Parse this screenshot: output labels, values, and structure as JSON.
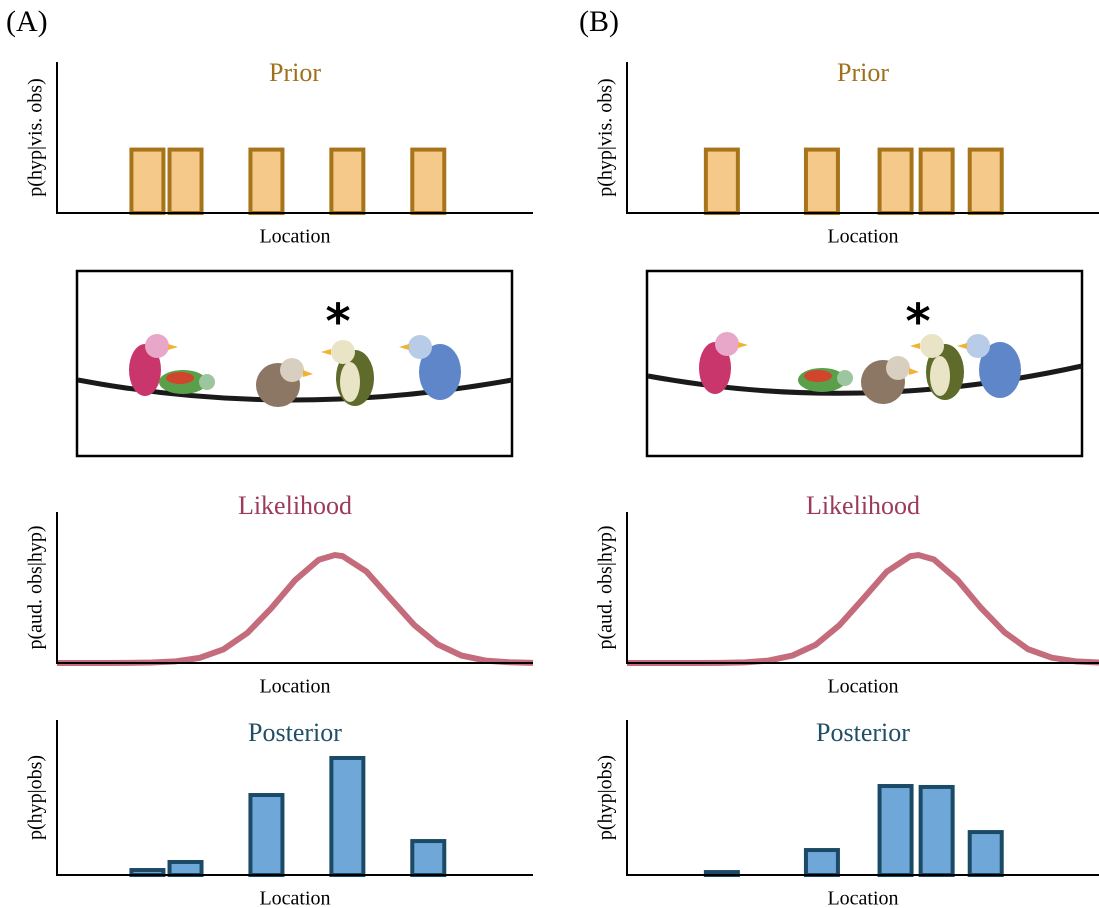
{
  "panel_labels": [
    "(A)",
    "(B)"
  ],
  "scenes": [
    {
      "marker": "*"
    },
    {
      "marker": "*"
    }
  ],
  "chart_data": [
    {
      "type": "bar",
      "title": "Prior",
      "title_color": "#a0701c",
      "ylabel": "p(hyp|vis. obs)",
      "xlabel": "Location",
      "x": [
        0.19,
        0.27,
        0.44,
        0.61,
        0.78
      ],
      "values": [
        0.42,
        0.42,
        0.42,
        0.42,
        0.42
      ],
      "color": "#f5c98a",
      "edgecolor": "#a87419",
      "xlim": [
        0,
        1
      ],
      "ylim": [
        0,
        1
      ]
    },
    {
      "type": "line",
      "title": "Likelihood",
      "title_color": "#9b3a5a",
      "ylabel": "p(aud. obs|hyp)",
      "xlabel": "Location",
      "x": [
        0,
        0.05,
        0.1,
        0.15,
        0.2,
        0.25,
        0.3,
        0.35,
        0.4,
        0.45,
        0.5,
        0.55,
        0.584,
        0.6,
        0.65,
        0.7,
        0.75,
        0.8,
        0.85,
        0.9,
        0.95,
        1
      ],
      "values": [
        0,
        0,
        0,
        0.001,
        0.003,
        0.011,
        0.034,
        0.091,
        0.199,
        0.362,
        0.548,
        0.684,
        0.715,
        0.708,
        0.606,
        0.429,
        0.253,
        0.123,
        0.049,
        0.016,
        0.005,
        0.001
      ],
      "color": "#c46b7c",
      "xlim": [
        0,
        1
      ],
      "ylim": [
        0,
        1
      ]
    },
    {
      "type": "bar",
      "title": "Posterior",
      "title_color": "#1f4e66",
      "ylabel": "p(hyp|obs)",
      "xlabel": "Location",
      "x": [
        0.19,
        0.27,
        0.44,
        0.61,
        0.78
      ],
      "values": [
        0.032,
        0.084,
        0.516,
        0.755,
        0.219
      ],
      "color": "#6fa8d8",
      "edgecolor": "#1a4a66",
      "xlim": [
        0,
        1
      ],
      "ylim": [
        0,
        1
      ]
    },
    {
      "type": "bar",
      "title": "Prior",
      "title_color": "#a0701c",
      "ylabel": "p(hyp|vis. obs)",
      "xlabel": "Location",
      "x": [
        0.201,
        0.413,
        0.569,
        0.656,
        0.76
      ],
      "values": [
        0.42,
        0.42,
        0.42,
        0.42,
        0.42
      ],
      "color": "#f5c98a",
      "edgecolor": "#a87419",
      "xlim": [
        0,
        1
      ],
      "ylim": [
        0,
        1
      ]
    },
    {
      "type": "line",
      "title": "Likelihood",
      "title_color": "#9b3a5a",
      "ylabel": "p(aud. obs|hyp)",
      "xlabel": "Location",
      "x": [
        0,
        0.05,
        0.1,
        0.15,
        0.2,
        0.25,
        0.3,
        0.35,
        0.4,
        0.45,
        0.5,
        0.55,
        0.6,
        0.617,
        0.65,
        0.7,
        0.75,
        0.8,
        0.85,
        0.9,
        0.95,
        1
      ],
      "values": [
        0,
        0,
        0,
        0,
        0.001,
        0.004,
        0.016,
        0.049,
        0.121,
        0.25,
        0.425,
        0.604,
        0.707,
        0.715,
        0.686,
        0.551,
        0.365,
        0.203,
        0.091,
        0.035,
        0.011,
        0.003
      ],
      "color": "#c46b7c",
      "xlim": [
        0,
        1
      ],
      "ylim": [
        0,
        1
      ]
    },
    {
      "type": "bar",
      "title": "Posterior",
      "title_color": "#1f4e66",
      "ylabel": "p(hyp|obs)",
      "xlabel": "Location",
      "x": [
        0.201,
        0.413,
        0.569,
        0.656,
        0.76
      ],
      "values": [
        0.019,
        0.161,
        0.574,
        0.568,
        0.277
      ],
      "color": "#6fa8d8",
      "edgecolor": "#1a4a66",
      "xlim": [
        0,
        1
      ],
      "ylim": [
        0,
        1
      ]
    }
  ]
}
